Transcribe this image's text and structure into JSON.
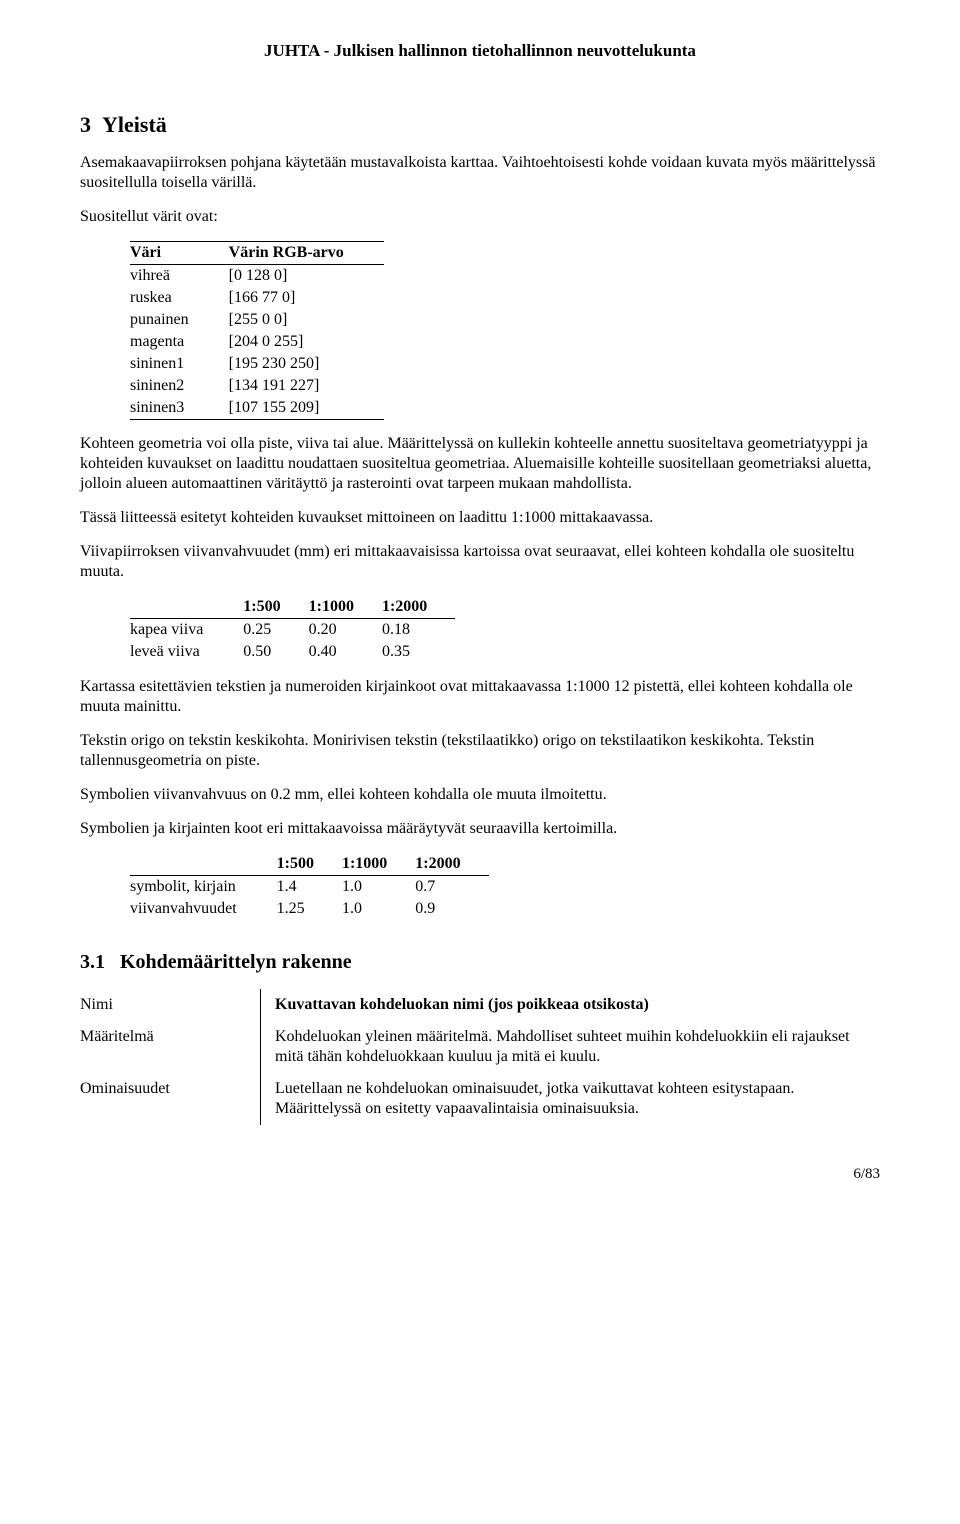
{
  "header": "JUHTA - Julkisen hallinnon tietohallinnon neuvottelukunta",
  "section": {
    "number": "3",
    "title": "Yleistä"
  },
  "intro_p1": "Asemakaavapiirroksen pohjana käytetään mustavalkoista karttaa. Vaihtoehtoisesti kohde voidaan kuvata myös määrittelyssä suositellulla toisella värillä.",
  "intro_p2": "Suositellut värit ovat:",
  "color_table": {
    "type": "table",
    "columns": [
      "Väri",
      "Värin RGB-arvo"
    ],
    "rows": [
      [
        "vihreä",
        "[0 128 0]"
      ],
      [
        "ruskea",
        "[166 77 0]"
      ],
      [
        "punainen",
        "[255 0 0]"
      ],
      [
        "magenta",
        "[204 0 255]"
      ],
      [
        "sininen1",
        "[195 230 250]"
      ],
      [
        "sininen2",
        "[134 191 227]"
      ],
      [
        "sininen3",
        "[107 155 209]"
      ]
    ]
  },
  "para_geom": "Kohteen geometria voi olla piste, viiva tai alue. Määrittelyssä on kullekin kohteelle annettu suositeltava geometriatyyppi ja kohteiden kuvaukset on laadittu noudattaen suositeltua geometriaa. Aluemaisille kohteille suositellaan geometriaksi aluetta, jolloin alueen automaattinen väritäyttö ja rasterointi ovat tarpeen mukaan mahdollista.",
  "para_liite": "Tässä liitteessä esitetyt kohteiden kuvaukset mittoineen on laadittu 1:1000 mittakaavassa.",
  "para_viiva": "Viivapiirroksen viivanvahvuudet (mm) eri mittakaavaisissa kartoissa ovat seuraavat, ellei kohteen kohdalla ole suositeltu muuta.",
  "line_table": {
    "type": "table",
    "columns": [
      "",
      "1:500",
      "1:1000",
      "1:2000"
    ],
    "rows": [
      [
        "kapea viiva",
        "0.25",
        "0.20",
        "0.18"
      ],
      [
        "leveä viiva",
        "0.50",
        "0.40",
        "0.35"
      ]
    ]
  },
  "para_kirjain": "Kartassa esitettävien tekstien ja numeroiden kirjainkoot ovat mittakaavassa 1:1000 12 pistettä, ellei kohteen kohdalla ole muuta mainittu.",
  "para_origo": "Tekstin origo on tekstin keskikohta. Monirivisen tekstin (tekstilaatikko) origo on tekstilaatikon keskikohta. Tekstin tallennusgeometria on piste.",
  "para_symb1": "Symbolien viivanvahvuus on 0.2 mm, ellei kohteen kohdalla ole muuta ilmoitettu.",
  "para_symb2": "Symbolien ja kirjainten koot eri mittakaavoissa määräytyvät seuraavilla kertoimilla.",
  "coef_table": {
    "type": "table",
    "columns": [
      "",
      "1:500",
      "1:1000",
      "1:2000"
    ],
    "rows": [
      [
        "symbolit, kirjain",
        "1.4",
        "1.0",
        "0.7"
      ],
      [
        "viivanvahvuudet",
        "1.25",
        "1.0",
        "0.9"
      ]
    ]
  },
  "subsection": {
    "number": "3.1",
    "title": "Kohdemäärittelyn rakenne"
  },
  "def_table": {
    "rows": [
      {
        "term": "Nimi",
        "def": "Kuvattavan kohdeluokan nimi (jos poikkeaa otsikosta)",
        "bold": true
      },
      {
        "term": "Määritelmä",
        "def": "Kohdeluokan yleinen määritelmä. Mahdolliset suhteet muihin kohdeluokkiin eli rajaukset mitä tähän kohdeluokkaan kuuluu ja mitä ei kuulu.",
        "bold": false
      },
      {
        "term": "Ominaisuudet",
        "def": "Luetellaan ne kohdeluokan ominaisuudet, jotka vaikuttavat kohteen esitystapaan. Määrittelyssä on esitetty vapaavalintaisia ominaisuuksia.",
        "bold": false
      }
    ]
  },
  "page_number": "6/83"
}
